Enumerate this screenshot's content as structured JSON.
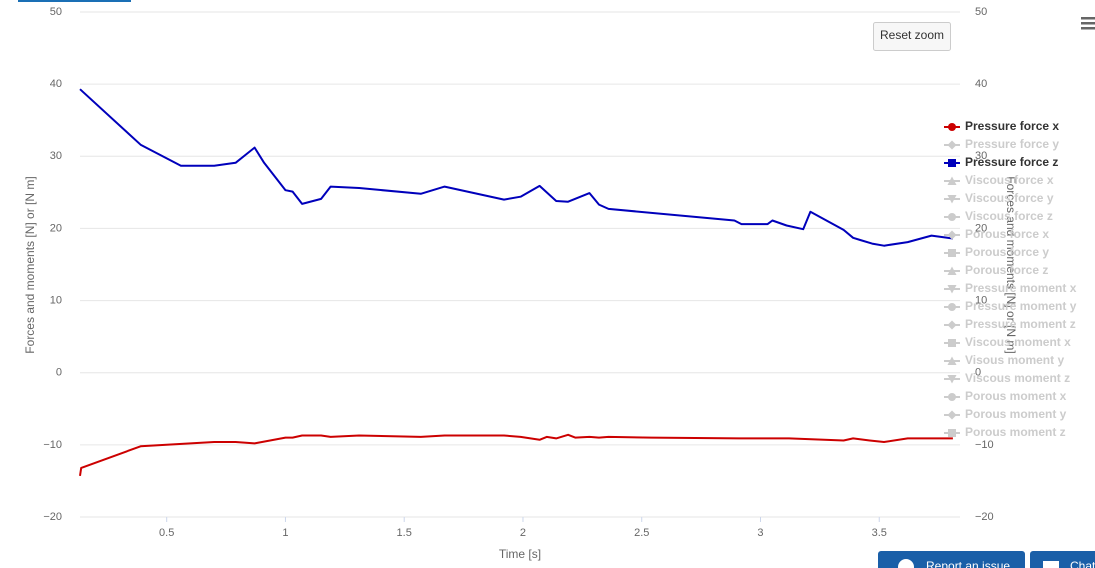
{
  "chart_data": {
    "type": "line",
    "xlabel": "Time [s]",
    "ylabel": "Forces and moments [N] or [N m]",
    "y2label": "Forces and moments [N] or [N m]",
    "xlim": [
      0.135,
      3.84
    ],
    "xticks": [
      0.5,
      1,
      1.5,
      2,
      2.5,
      3,
      3.5
    ],
    "ylim": [
      -20,
      50
    ],
    "yticks": [
      {
        "value": -20,
        "label": "−20"
      },
      {
        "value": -10,
        "label": "−10"
      },
      0,
      10,
      20,
      30,
      40,
      50
    ],
    "y2lim": [
      -20,
      50
    ],
    "y2ticks": [
      {
        "value": -20,
        "label": "−20"
      },
      {
        "value": -10,
        "label": "−10"
      },
      0,
      10,
      20,
      30,
      40,
      50
    ],
    "grid": true,
    "legend": "right",
    "series": [
      {
        "name": "Pressure force x",
        "color": "#cc0000",
        "visible": true,
        "x": [
          0.135,
          0.14,
          0.39,
          0.7,
          0.79,
          0.87,
          1.0,
          1.03,
          1.07,
          1.15,
          1.19,
          1.31,
          1.57,
          1.67,
          1.92,
          1.99,
          2.07,
          2.1,
          2.14,
          2.19,
          2.22,
          2.28,
          2.32,
          2.36,
          2.54,
          2.91,
          3.12,
          3.35,
          3.39,
          3.46,
          3.52,
          3.62,
          3.81
        ],
        "values": [
          -14.3,
          -13.2,
          -10.2,
          -9.6,
          -9.6,
          -9.8,
          -9.0,
          -9.0,
          -8.7,
          -8.7,
          -8.9,
          -8.7,
          -8.9,
          -8.7,
          -8.7,
          -8.9,
          -9.3,
          -8.9,
          -9.1,
          -8.6,
          -9.0,
          -8.9,
          -9.0,
          -8.9,
          -9.0,
          -9.1,
          -9.1,
          -9.4,
          -9.1,
          -9.4,
          -9.6,
          -9.1,
          -9.1
        ]
      },
      {
        "name": "Pressure force y",
        "visible": false
      },
      {
        "name": "Pressure force z",
        "color": "#0000bb",
        "visible": true,
        "x": [
          0.135,
          0.39,
          0.56,
          0.7,
          0.79,
          0.87,
          0.91,
          1.0,
          1.03,
          1.07,
          1.15,
          1.19,
          1.31,
          1.57,
          1.67,
          1.92,
          1.99,
          2.07,
          2.14,
          2.19,
          2.28,
          2.32,
          2.36,
          2.89,
          2.92,
          3.03,
          3.05,
          3.11,
          3.18,
          3.21,
          3.35,
          3.39,
          3.42,
          3.47,
          3.52,
          3.62,
          3.72,
          3.81
        ],
        "values": [
          39.3,
          31.6,
          28.7,
          28.7,
          29.1,
          31.2,
          29.1,
          25.3,
          25.1,
          23.4,
          24.1,
          25.8,
          25.6,
          24.8,
          25.8,
          24.0,
          24.4,
          25.9,
          23.8,
          23.7,
          24.9,
          23.3,
          22.7,
          21.1,
          20.6,
          20.6,
          21.1,
          20.4,
          19.9,
          22.3,
          19.8,
          18.7,
          18.4,
          17.9,
          17.6,
          18.1,
          19.0,
          18.6
        ]
      },
      {
        "name": "Viscous force x",
        "visible": false
      },
      {
        "name": "Viscous force y",
        "visible": false
      },
      {
        "name": "Viscous force z",
        "visible": false
      },
      {
        "name": "Porous force x",
        "visible": false
      },
      {
        "name": "Porous force y",
        "visible": false
      },
      {
        "name": "Porous force z",
        "visible": false
      },
      {
        "name": "Pressure moment x",
        "visible": false
      },
      {
        "name": "Pressure moment y",
        "visible": false
      },
      {
        "name": "Pressure moment z",
        "visible": false
      },
      {
        "name": "Viscous moment x",
        "visible": false
      },
      {
        "name": "Visous moment y",
        "visible": false
      },
      {
        "name": "Viscous moment z",
        "visible": false
      },
      {
        "name": "Porous moment x",
        "visible": false
      },
      {
        "name": "Porous moment y",
        "visible": false
      },
      {
        "name": "Porous moment z",
        "visible": false
      }
    ]
  },
  "ui": {
    "reset_zoom": "Reset zoom",
    "report_issue": "Report an issue",
    "chat": "Chat"
  }
}
